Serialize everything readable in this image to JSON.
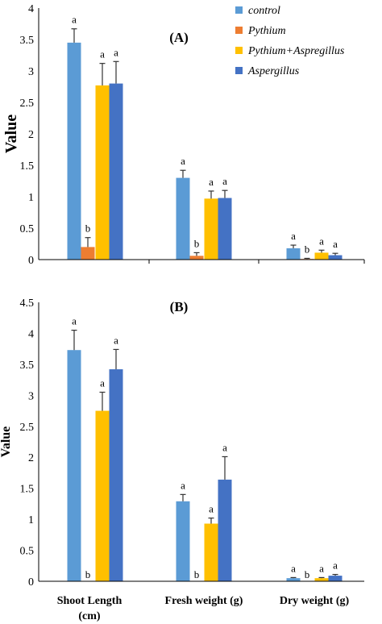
{
  "chart_data": [
    {
      "type": "bar",
      "panel_label": "(A)",
      "ylabel": "Value",
      "ylim": [
        0,
        4
      ],
      "yticks": [
        "0",
        "0.5",
        "1",
        "1.5",
        "2",
        "2.5",
        "3",
        "3.5",
        "4"
      ],
      "categories": [
        "Shoot Length (cm)",
        "Fresh weight (g)",
        "Dry weight (g)"
      ],
      "series": [
        {
          "name": "control",
          "color": "#5B9BD5",
          "values": [
            3.45,
            1.3,
            0.18
          ],
          "errors": [
            0.22,
            0.12,
            0.05
          ],
          "letters": [
            "a",
            "a",
            "a"
          ]
        },
        {
          "name": "Pythium",
          "color": "#ED7D31",
          "values": [
            0.2,
            0.06,
            0.01
          ],
          "errors": [
            0.15,
            0.05,
            0.01
          ],
          "letters": [
            "b",
            "b",
            "b"
          ]
        },
        {
          "name": "Pythium+Aspregillus",
          "color": "#FFC000",
          "values": [
            2.77,
            0.97,
            0.11
          ],
          "errors": [
            0.35,
            0.12,
            0.04
          ],
          "letters": [
            "a",
            "a",
            "a"
          ]
        },
        {
          "name": "Aspergillus",
          "color": "#4472C4",
          "values": [
            2.8,
            0.98,
            0.07
          ],
          "errors": [
            0.35,
            0.12,
            0.03
          ],
          "letters": [
            "a",
            "a",
            "a"
          ]
        }
      ],
      "legend": "top-right"
    },
    {
      "type": "bar",
      "panel_label": "(B)",
      "ylabel": "Value",
      "ylim": [
        0,
        4.5
      ],
      "yticks": [
        "0",
        "0.5",
        "1",
        "1.5",
        "2",
        "2.5",
        "3",
        "3.5",
        "4",
        "4.5"
      ],
      "categories": [
        "Shoot Length (cm)",
        "Fresh weight (g)",
        "Dry weight (g)"
      ],
      "series": [
        {
          "name": "control",
          "color": "#5B9BD5",
          "values": [
            3.73,
            1.29,
            0.05
          ],
          "errors": [
            0.32,
            0.11,
            0.01
          ],
          "letters": [
            "a",
            "a",
            "a"
          ]
        },
        {
          "name": "Pythium",
          "color": "#ED7D31",
          "values": [
            0,
            0,
            0
          ],
          "errors": [
            0,
            0,
            0
          ],
          "letters": [
            "b",
            "b",
            "b"
          ]
        },
        {
          "name": "Pythium+Aspregillus",
          "color": "#FFC000",
          "values": [
            2.75,
            0.93,
            0.05
          ],
          "errors": [
            0.3,
            0.09,
            0.01
          ],
          "letters": [
            "a",
            "a",
            "a"
          ]
        },
        {
          "name": "Aspergillus",
          "color": "#4472C4",
          "values": [
            3.42,
            1.64,
            0.09
          ],
          "errors": [
            0.32,
            0.37,
            0.02
          ],
          "letters": [
            "a",
            "a",
            "a"
          ]
        }
      ]
    }
  ],
  "category_labels": [
    [
      "Shoot Length",
      "(cm)"
    ],
    [
      "Fresh weight (g)"
    ],
    [
      "Dry weight (g)"
    ]
  ]
}
